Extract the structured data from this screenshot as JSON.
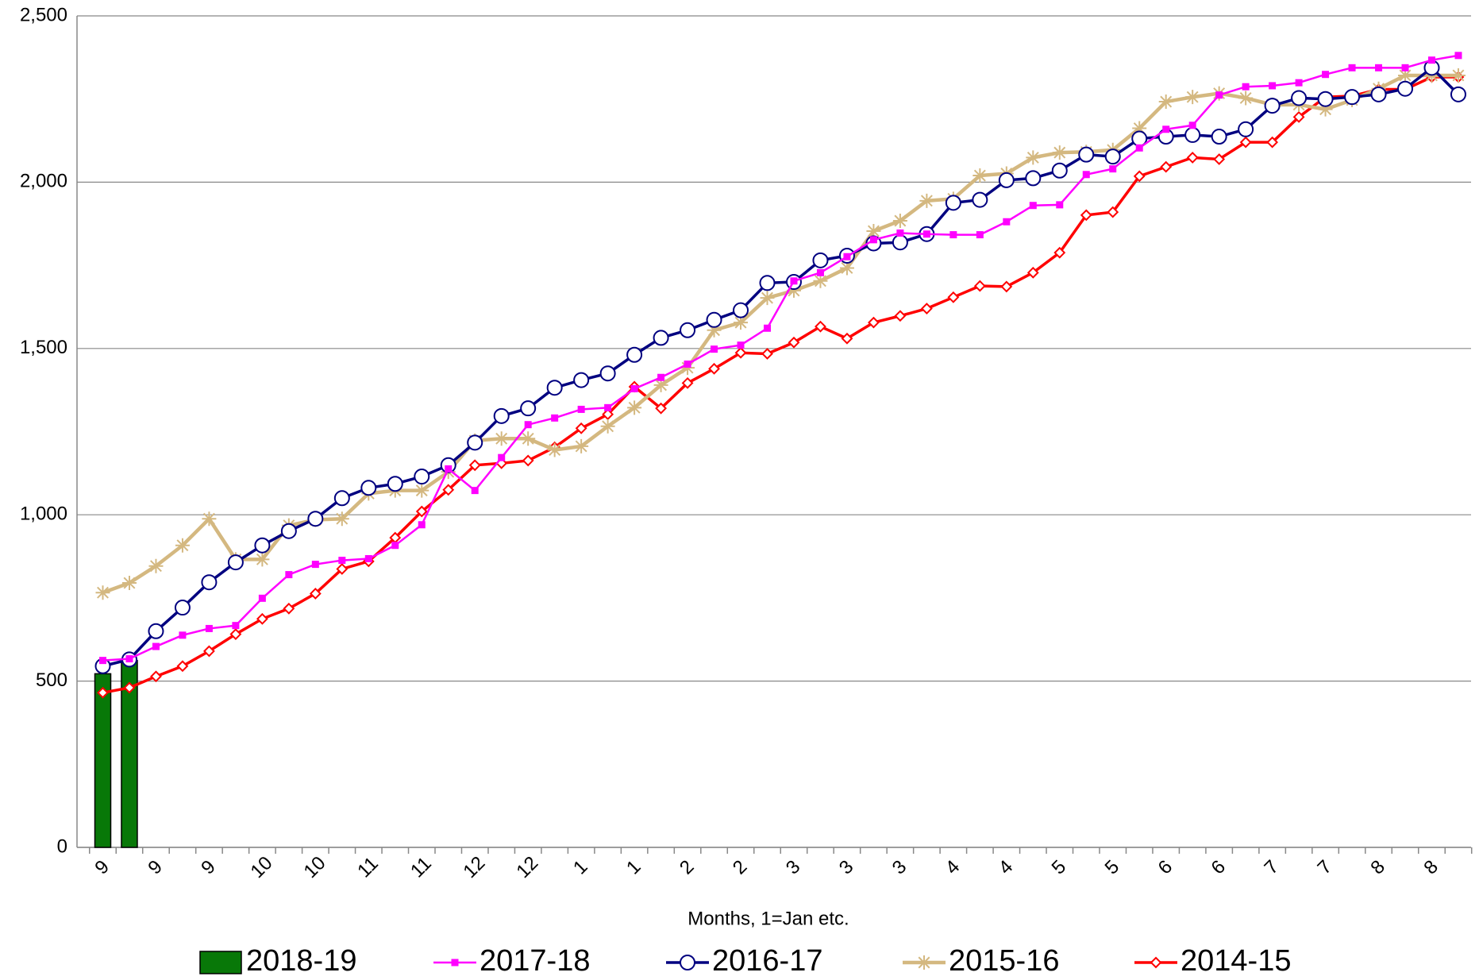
{
  "chart_data": {
    "type": "line",
    "x_label": "Months, 1=Jan etc.",
    "categories": [
      "9",
      null,
      "9",
      null,
      "9",
      null,
      "10",
      null,
      "10",
      null,
      "11",
      null,
      "11",
      null,
      "12",
      null,
      "12",
      null,
      "1",
      null,
      "1",
      null,
      "2",
      null,
      "2",
      null,
      "3",
      null,
      "3",
      null,
      "3",
      null,
      "4",
      null,
      "4",
      null,
      "5",
      null,
      "5",
      null,
      "6",
      null,
      "6",
      null,
      "7",
      null,
      "7",
      null,
      "8",
      null,
      "8",
      null
    ],
    "ylim": [
      0,
      2500
    ],
    "yticks": [
      0,
      500,
      {
        "value": 1000,
        "label": "1,000"
      },
      {
        "value": 1500,
        "label": "1,500"
      },
      {
        "value": 2000,
        "label": "2,000"
      },
      {
        "value": 2500,
        "label": "2,500"
      }
    ],
    "grid": true,
    "legend": "bottom",
    "series": [
      {
        "name": "2018-19",
        "type": "bar",
        "color": "#087808",
        "values": [
          522,
          562,
          null,
          null,
          null,
          null,
          null,
          null,
          null,
          null,
          null,
          null,
          null,
          null,
          null,
          null,
          null,
          null,
          null,
          null,
          null,
          null,
          null,
          null,
          null,
          null,
          null,
          null,
          null,
          null,
          null,
          null,
          null,
          null,
          null,
          null,
          null,
          null,
          null,
          null,
          null,
          null,
          null,
          null,
          null,
          null,
          null,
          null,
          null,
          null,
          null,
          null
        ]
      },
      {
        "name": "2017-18",
        "type": "line",
        "marker": "square",
        "color": "#ff00ff",
        "values": [
          562,
          567,
          604,
          638,
          658,
          667,
          749,
          820,
          851,
          863,
          868,
          908,
          970,
          1138,
          1073,
          1172,
          1271,
          1291,
          1317,
          1322,
          1379,
          1413,
          1453,
          1498,
          1510,
          1561,
          1703,
          1728,
          1776,
          1827,
          1847,
          1844,
          1842,
          1842,
          1881,
          1930,
          1932,
          2023,
          2040,
          2103,
          2159,
          2171,
          2262,
          2287,
          2290,
          2299,
          2324,
          2344,
          2344,
          2344,
          2367,
          2381
        ]
      },
      {
        "name": "2016-17",
        "type": "line",
        "marker": "circle",
        "color": "#000080",
        "values": [
          545,
          565,
          650,
          721,
          797,
          857,
          908,
          951,
          988,
          1050,
          1081,
          1093,
          1115,
          1149,
          1217,
          1297,
          1320,
          1382,
          1405,
          1425,
          1481,
          1532,
          1555,
          1586,
          1615,
          1697,
          1700,
          1765,
          1779,
          1816,
          1819,
          1844,
          1938,
          1947,
          2006,
          2012,
          2035,
          2083,
          2077,
          2131,
          2137,
          2142,
          2137,
          2159,
          2230,
          2253,
          2250,
          2256,
          2264,
          2281,
          2344,
          2264
        ]
      },
      {
        "name": "2015-16",
        "type": "line",
        "marker": "star",
        "color": "#d4b880",
        "values": [
          766,
          795,
          846,
          908,
          988,
          866,
          866,
          968,
          985,
          988,
          1064,
          1073,
          1073,
          1129,
          1223,
          1229,
          1229,
          1195,
          1206,
          1266,
          1322,
          1390,
          1442,
          1555,
          1578,
          1652,
          1674,
          1703,
          1742,
          1853,
          1884,
          1944,
          1950,
          2020,
          2026,
          2074,
          2089,
          2091,
          2097,
          2162,
          2242,
          2256,
          2267,
          2253,
          2233,
          2233,
          2219,
          2247,
          2281,
          2321,
          2321,
          2321
        ]
      },
      {
        "name": "2014-15",
        "type": "line",
        "marker": "diamond",
        "color": "#ff0000",
        "values": [
          465,
          480,
          514,
          545,
          590,
          641,
          687,
          718,
          763,
          837,
          860,
          931,
          1010,
          1075,
          1149,
          1155,
          1163,
          1203,
          1260,
          1302,
          1385,
          1320,
          1396,
          1439,
          1487,
          1484,
          1518,
          1566,
          1530,
          1578,
          1598,
          1620,
          1654,
          1688,
          1686,
          1728,
          1788,
          1901,
          1910,
          2018,
          2046,
          2074,
          2069,
          2120,
          2120,
          2196,
          2256,
          2259,
          2279,
          2279,
          2316,
          2316
        ]
      }
    ]
  }
}
